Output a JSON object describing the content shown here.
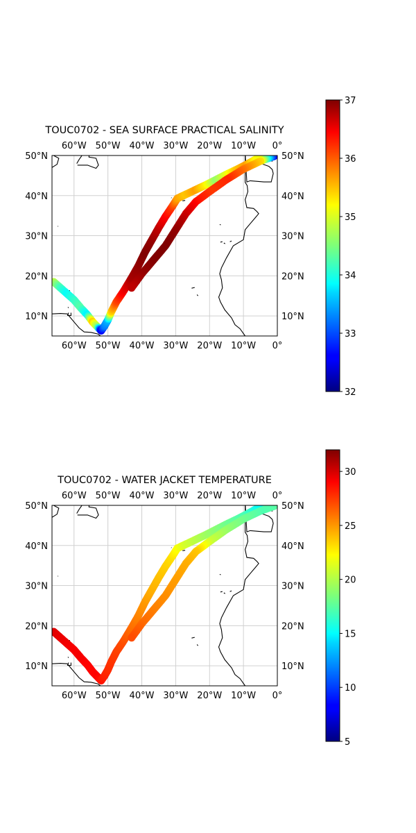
{
  "panels": [
    {
      "title": "TOUC0702 - SEA SURFACE PRACTICAL SALINITY",
      "variable": "Sea surface practical salinity",
      "colorbar": {
        "min": 32,
        "max": 37,
        "ticks": [
          "32",
          "33",
          "34",
          "35",
          "36",
          "37"
        ]
      },
      "track": [
        {
          "lon": -66,
          "lat": 18.5,
          "v": 34.8
        },
        {
          "lon": -64,
          "lat": 17,
          "v": 34.2
        },
        {
          "lon": -62,
          "lat": 15.5,
          "v": 33.9
        },
        {
          "lon": -60,
          "lat": 14,
          "v": 34.1
        },
        {
          "lon": -58,
          "lat": 12,
          "v": 34.3
        },
        {
          "lon": -56,
          "lat": 10.2,
          "v": 33.8
        },
        {
          "lon": -54.5,
          "lat": 8.5,
          "v": 35.4
        },
        {
          "lon": -53,
          "lat": 7.2,
          "v": 34.6
        },
        {
          "lon": -52,
          "lat": 6.3,
          "v": 32.5
        },
        {
          "lon": -51,
          "lat": 7.5,
          "v": 33.2
        },
        {
          "lon": -50,
          "lat": 9,
          "v": 33.5
        },
        {
          "lon": -49,
          "lat": 11,
          "v": 35.3
        },
        {
          "lon": -47.5,
          "lat": 13.5,
          "v": 36.0
        },
        {
          "lon": -45.5,
          "lat": 16,
          "v": 36.4
        },
        {
          "lon": -43,
          "lat": 19.5,
          "v": 36.8
        },
        {
          "lon": -41,
          "lat": 22.5,
          "v": 36.9
        },
        {
          "lon": -39,
          "lat": 26,
          "v": 37.0
        },
        {
          "lon": -37,
          "lat": 29,
          "v": 36.9
        },
        {
          "lon": -35,
          "lat": 32,
          "v": 36.7
        },
        {
          "lon": -33,
          "lat": 34.8,
          "v": 36.4
        },
        {
          "lon": -31,
          "lat": 37.3,
          "v": 36.1
        },
        {
          "lon": -29.5,
          "lat": 39.3,
          "v": 35.6
        },
        {
          "lon": -27,
          "lat": 40.3,
          "v": 35.4
        },
        {
          "lon": -24,
          "lat": 41.5,
          "v": 35.6
        },
        {
          "lon": -21,
          "lat": 42.7,
          "v": 35.2
        },
        {
          "lon": -18,
          "lat": 44,
          "v": 34.6
        },
        {
          "lon": -15,
          "lat": 45.3,
          "v": 35.0
        },
        {
          "lon": -12,
          "lat": 46.5,
          "v": 35.4
        },
        {
          "lon": -9,
          "lat": 47.8,
          "v": 35.6
        },
        {
          "lon": -6,
          "lat": 49.2,
          "v": 35.1
        },
        {
          "lon": -3,
          "lat": 49.7,
          "v": 35.0
        },
        {
          "lon": -1,
          "lat": 49.8,
          "v": 32.6
        },
        {
          "lon": -5,
          "lat": 48.6,
          "v": 35.3
        },
        {
          "lon": -10,
          "lat": 46.6,
          "v": 35.8
        },
        {
          "lon": -15,
          "lat": 44,
          "v": 36.2
        },
        {
          "lon": -20,
          "lat": 41,
          "v": 36.1
        },
        {
          "lon": -24,
          "lat": 38.5,
          "v": 36.3
        },
        {
          "lon": -27,
          "lat": 35.5,
          "v": 36.6
        },
        {
          "lon": -30,
          "lat": 31.5,
          "v": 36.9
        },
        {
          "lon": -33,
          "lat": 27.5,
          "v": 37.0
        },
        {
          "lon": -36.5,
          "lat": 24,
          "v": 37.0
        },
        {
          "lon": -40,
          "lat": 20.5,
          "v": 36.9
        },
        {
          "lon": -43,
          "lat": 17,
          "v": 36.7
        }
      ]
    },
    {
      "title": "TOUC0702 - WATER JACKET TEMPERATURE",
      "variable": "Water jacket temperature",
      "colorbar": {
        "min": 5,
        "max": 32,
        "ticks": [
          "5",
          "10",
          "15",
          "20",
          "25",
          "30"
        ]
      },
      "track": [
        {
          "lon": -66,
          "lat": 18.5,
          "v": 29.5
        },
        {
          "lon": -64,
          "lat": 17,
          "v": 29.2
        },
        {
          "lon": -62,
          "lat": 15.5,
          "v": 29.0
        },
        {
          "lon": -60,
          "lat": 14,
          "v": 28.8
        },
        {
          "lon": -58,
          "lat": 12,
          "v": 28.9
        },
        {
          "lon": -56,
          "lat": 10.2,
          "v": 28.6
        },
        {
          "lon": -54.5,
          "lat": 8.5,
          "v": 28.5
        },
        {
          "lon": -53,
          "lat": 7.2,
          "v": 28.6
        },
        {
          "lon": -52,
          "lat": 6.3,
          "v": 28.2
        },
        {
          "lon": -51,
          "lat": 7.5,
          "v": 27.8
        },
        {
          "lon": -50,
          "lat": 9,
          "v": 27.5
        },
        {
          "lon": -49,
          "lat": 11,
          "v": 27.3
        },
        {
          "lon": -47.5,
          "lat": 13.5,
          "v": 27.0
        },
        {
          "lon": -45.5,
          "lat": 16,
          "v": 26.6
        },
        {
          "lon": -43,
          "lat": 19.5,
          "v": 25.8
        },
        {
          "lon": -41,
          "lat": 22.5,
          "v": 25.2
        },
        {
          "lon": -39,
          "lat": 26,
          "v": 24.6
        },
        {
          "lon": -37,
          "lat": 29,
          "v": 24.0
        },
        {
          "lon": -35,
          "lat": 32,
          "v": 23.6
        },
        {
          "lon": -33,
          "lat": 34.8,
          "v": 23.2
        },
        {
          "lon": -31,
          "lat": 37.3,
          "v": 22.7
        },
        {
          "lon": -29.5,
          "lat": 39.3,
          "v": 21.8
        },
        {
          "lon": -27,
          "lat": 40.3,
          "v": 20.8
        },
        {
          "lon": -24,
          "lat": 41.5,
          "v": 20.1
        },
        {
          "lon": -21,
          "lat": 42.7,
          "v": 19.4
        },
        {
          "lon": -18,
          "lat": 44,
          "v": 18.8
        },
        {
          "lon": -15,
          "lat": 45.3,
          "v": 18.2
        },
        {
          "lon": -12,
          "lat": 46.5,
          "v": 17.6
        },
        {
          "lon": -9,
          "lat": 47.8,
          "v": 17.0
        },
        {
          "lon": -6,
          "lat": 49.2,
          "v": 15.6
        },
        {
          "lon": -3,
          "lat": 49.7,
          "v": 14.8
        },
        {
          "lon": -1,
          "lat": 49.8,
          "v": 17.5
        },
        {
          "lon": -5,
          "lat": 48.6,
          "v": 17.2
        },
        {
          "lon": -10,
          "lat": 46.6,
          "v": 18.0
        },
        {
          "lon": -15,
          "lat": 44,
          "v": 19.0
        },
        {
          "lon": -20,
          "lat": 41,
          "v": 20.5
        },
        {
          "lon": -24,
          "lat": 38.5,
          "v": 23.3
        },
        {
          "lon": -27,
          "lat": 35.5,
          "v": 24.0
        },
        {
          "lon": -30,
          "lat": 31.5,
          "v": 24.4
        },
        {
          "lon": -33,
          "lat": 27.5,
          "v": 24.8
        },
        {
          "lon": -36.5,
          "lat": 24,
          "v": 25.2
        },
        {
          "lon": -40,
          "lat": 20.5,
          "v": 25.8
        },
        {
          "lon": -43,
          "lat": 17,
          "v": 26.6
        }
      ]
    }
  ],
  "map": {
    "lon_ticks": [
      "60°W",
      "50°W",
      "40°W",
      "30°W",
      "20°W",
      "10°W",
      "0°"
    ],
    "lat_ticks": [
      "10°N",
      "20°N",
      "30°N",
      "40°N",
      "50°N"
    ],
    "lon_values": [
      -60,
      -50,
      -40,
      -30,
      -20,
      -10,
      0
    ],
    "lat_values": [
      10,
      20,
      30,
      40,
      50
    ],
    "lon_range": [
      -66.5,
      0
    ],
    "lat_range": [
      5,
      50
    ]
  }
}
